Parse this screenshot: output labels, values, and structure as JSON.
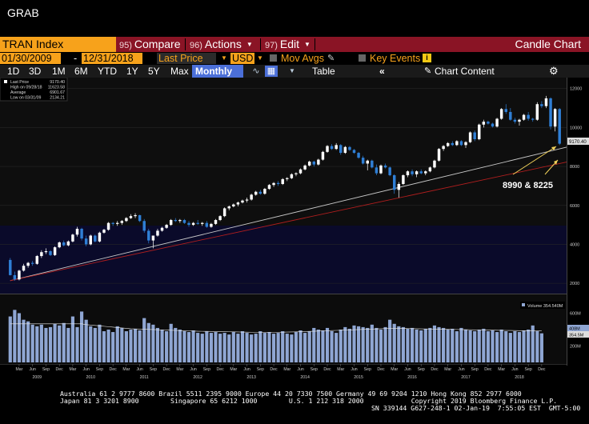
{
  "window": {
    "title": "GRAB"
  },
  "command_bar": {
    "security": "TRAN Index",
    "compare": {
      "num": "95)",
      "label": "Compare"
    },
    "actions": {
      "num": "96)",
      "label": "Actions"
    },
    "edit": {
      "num": "97)",
      "label": "Edit"
    },
    "chart_type": "Candle Chart"
  },
  "params": {
    "start_date": "01/30/2009",
    "dash": "-",
    "end_date": "12/31/2018",
    "field": "Last Price",
    "currency": "USD",
    "mov_avgs": "Mov Avgs",
    "key_events": "Key Events",
    "info": "i"
  },
  "periods": {
    "p1d": "1D",
    "p3d": "3D",
    "p1m": "1M",
    "p6m": "6M",
    "pytd": "YTD",
    "p1y": "1Y",
    "p5y": "5Y",
    "pmax": "Max",
    "frequency": "Monthly",
    "table": "Table",
    "chart_content": "Chart Content"
  },
  "legend": {
    "last_price_label": "Last Price",
    "last_price_value": "9170.40",
    "high_label": "High on 09/28/18",
    "high_value": "11623.58",
    "average_label": "Average",
    "average_value": "6901.67",
    "low_label": "Low on 03/31/09",
    "low_value": "2134.21"
  },
  "annotation": {
    "text": "8990 & 8225"
  },
  "last_price_tag": "9170.40",
  "volume_legend": "Volume 354.540M",
  "volume_tags": {
    "v1": "408M",
    "v2": "354.5M"
  },
  "footer": {
    "line1": "Australia 61 2 9777 8600 Brazil 5511 2395 9000 Europe 44 20 7330 7500 Germany 49 69 9204 1210 Hong Kong 852 2977 6000",
    "line2": "Japan 81 3 3201 8900        Singapore 65 6212 1000        U.S. 1 212 318 2000            Copyright 2019 Bloomberg Finance L.P.",
    "line3": "SN 339144 G627-248-1 02-Jan-19  7:55:05 EST  GMT-5:00"
  },
  "colors": {
    "up": "#ffffff",
    "down": "#2f7fd6",
    "trend_white": "#c8c8c8",
    "trend_red": "#b01e1e",
    "volume": "#8fa6d3",
    "menu": "#8a1425",
    "accent": "#f7a21b"
  },
  "chart_data": {
    "type": "candlestick",
    "frequency": "monthly",
    "ylim": [
      1800,
      12400
    ],
    "yticks": [
      2000,
      4000,
      6000,
      8000,
      10000,
      12000
    ],
    "start": "2009-01",
    "candles": [
      [
        3200,
        3300,
        2400,
        2420
      ],
      [
        2420,
        2600,
        2134,
        2200
      ],
      [
        2200,
        2700,
        2150,
        2650
      ],
      [
        2650,
        3000,
        2600,
        2900
      ],
      [
        2900,
        3100,
        2800,
        3050
      ],
      [
        3050,
        3150,
        2900,
        3000
      ],
      [
        3000,
        3450,
        2950,
        3400
      ],
      [
        3400,
        3700,
        3300,
        3600
      ],
      [
        3600,
        3800,
        3500,
        3650
      ],
      [
        3650,
        3700,
        3400,
        3450
      ],
      [
        3450,
        3900,
        3400,
        3850
      ],
      [
        3850,
        4150,
        3800,
        4100
      ],
      [
        4100,
        4200,
        3900,
        3950
      ],
      [
        3950,
        4200,
        3900,
        4150
      ],
      [
        4150,
        4550,
        4100,
        4500
      ],
      [
        4500,
        4900,
        4400,
        4800
      ],
      [
        4800,
        4850,
        4200,
        4300
      ],
      [
        4300,
        4450,
        3900,
        4000
      ],
      [
        4000,
        4500,
        3950,
        4450
      ],
      [
        4450,
        4500,
        4100,
        4150
      ],
      [
        4150,
        4650,
        4100,
        4600
      ],
      [
        4600,
        4800,
        4550,
        4750
      ],
      [
        4750,
        5150,
        4700,
        5100
      ],
      [
        5100,
        5150,
        4950,
        5050
      ],
      [
        5050,
        5200,
        4950,
        5100
      ],
      [
        5100,
        5250,
        5000,
        5200
      ],
      [
        5200,
        5400,
        5150,
        5350
      ],
      [
        5350,
        5550,
        5300,
        5450
      ],
      [
        5450,
        5600,
        5350,
        5500
      ],
      [
        5500,
        5520,
        5150,
        5200
      ],
      [
        5200,
        5300,
        4600,
        4700
      ],
      [
        4700,
        4800,
        4050,
        4200
      ],
      [
        4200,
        4400,
        3800,
        4450
      ],
      [
        4450,
        4800,
        4400,
        4700
      ],
      [
        4700,
        4900,
        4650,
        4850
      ],
      [
        4850,
        5050,
        4800,
        5000
      ],
      [
        5000,
        5300,
        4950,
        5250
      ],
      [
        5250,
        5350,
        5150,
        5200
      ],
      [
        5200,
        5300,
        5100,
        5250
      ],
      [
        5250,
        5300,
        5050,
        5100
      ],
      [
        5100,
        5200,
        4900,
        5000
      ],
      [
        5000,
        5150,
        4950,
        5100
      ],
      [
        5100,
        5250,
        5000,
        5050
      ],
      [
        5050,
        5150,
        4950,
        5100
      ],
      [
        5100,
        5200,
        4850,
        4900
      ],
      [
        4900,
        5100,
        4850,
        5050
      ],
      [
        5050,
        5300,
        5000,
        5250
      ],
      [
        5250,
        5500,
        5200,
        5450
      ],
      [
        5450,
        5900,
        5400,
        5850
      ],
      [
        5850,
        6000,
        5750,
        5950
      ],
      [
        5950,
        6100,
        5900,
        6050
      ],
      [
        6050,
        6200,
        5950,
        6150
      ],
      [
        6150,
        6300,
        6100,
        6250
      ],
      [
        6250,
        6400,
        6150,
        6300
      ],
      [
        6300,
        6600,
        6250,
        6550
      ],
      [
        6550,
        6750,
        6500,
        6700
      ],
      [
        6700,
        6800,
        6550,
        6600
      ],
      [
        6600,
        6900,
        6550,
        6850
      ],
      [
        6850,
        7100,
        6800,
        7050
      ],
      [
        7050,
        7200,
        6950,
        7150
      ],
      [
        7150,
        7250,
        7000,
        7100
      ],
      [
        7100,
        7400,
        7050,
        7350
      ],
      [
        7350,
        7450,
        7250,
        7400
      ],
      [
        7400,
        7650,
        7350,
        7600
      ],
      [
        7600,
        7700,
        7500,
        7650
      ],
      [
        7650,
        7900,
        7600,
        7850
      ],
      [
        7850,
        8100,
        7800,
        8050
      ],
      [
        8050,
        8300,
        8000,
        8250
      ],
      [
        8250,
        8300,
        8000,
        8100
      ],
      [
        8100,
        8400,
        8050,
        8350
      ],
      [
        8350,
        8800,
        8300,
        8750
      ],
      [
        8750,
        9100,
        8700,
        9050
      ],
      [
        9050,
        9150,
        8850,
        8900
      ],
      [
        8900,
        9200,
        8850,
        9100
      ],
      [
        9100,
        9150,
        8600,
        8700
      ],
      [
        8700,
        9050,
        8650,
        9000
      ],
      [
        9000,
        9050,
        8800,
        8850
      ],
      [
        8850,
        8900,
        8650,
        8700
      ],
      [
        8700,
        8750,
        8400,
        8450
      ],
      [
        8450,
        8550,
        8100,
        8150
      ],
      [
        8150,
        8350,
        7800,
        8300
      ],
      [
        8300,
        8350,
        7900,
        7950
      ],
      [
        7950,
        8100,
        7550,
        7650
      ],
      [
        7650,
        8100,
        7600,
        8050
      ],
      [
        8050,
        8150,
        7900,
        7950
      ],
      [
        7950,
        8000,
        7500,
        7550
      ],
      [
        7550,
        7600,
        6600,
        6800
      ],
      [
        6800,
        7200,
        6400,
        7100
      ],
      [
        7100,
        7600,
        7050,
        7550
      ],
      [
        7550,
        7800,
        7450,
        7750
      ],
      [
        7750,
        7850,
        7500,
        7600
      ],
      [
        7600,
        7800,
        7450,
        7750
      ],
      [
        7750,
        7850,
        7600,
        7650
      ],
      [
        7650,
        7800,
        7550,
        7750
      ],
      [
        7750,
        8000,
        7700,
        7950
      ],
      [
        7950,
        8350,
        7900,
        8300
      ],
      [
        8300,
        8950,
        8250,
        8900
      ],
      [
        8900,
        9100,
        8800,
        9050
      ],
      [
        9050,
        9250,
        9000,
        9200
      ],
      [
        9200,
        9300,
        9050,
        9100
      ],
      [
        9100,
        9350,
        9050,
        9300
      ],
      [
        9300,
        9350,
        9050,
        9100
      ],
      [
        9100,
        9300,
        8950,
        9250
      ],
      [
        9250,
        9800,
        9200,
        9750
      ],
      [
        9750,
        9850,
        9300,
        9400
      ],
      [
        9400,
        10200,
        9350,
        10150
      ],
      [
        10150,
        10400,
        10000,
        10300
      ],
      [
        10300,
        10350,
        10150,
        10200
      ],
      [
        10200,
        10250,
        10000,
        10050
      ],
      [
        10050,
        10500,
        10000,
        10450
      ],
      [
        10450,
        11000,
        10400,
        10950
      ],
      [
        10950,
        11200,
        10700,
        10800
      ],
      [
        10800,
        11000,
        10350,
        10400
      ],
      [
        10400,
        10500,
        10200,
        10300
      ],
      [
        10300,
        10450,
        10100,
        10400
      ],
      [
        10400,
        10700,
        10350,
        10650
      ],
      [
        10650,
        10800,
        10350,
        10450
      ],
      [
        10450,
        10500,
        10300,
        10400
      ],
      [
        10400,
        11300,
        10350,
        11200
      ],
      [
        11200,
        11350,
        11000,
        11100
      ],
      [
        11100,
        11623,
        11000,
        11500
      ],
      [
        11500,
        11550,
        9900,
        10050
      ],
      [
        10050,
        11000,
        9800,
        10950
      ],
      [
        10950,
        11000,
        9100,
        9170
      ]
    ],
    "trendlines": [
      {
        "color": "white",
        "from": [
          0,
          2134
        ],
        "to": [
          119,
          8990
        ]
      },
      {
        "color": "red",
        "from": [
          0,
          2134
        ],
        "to": [
          119,
          8225
        ]
      }
    ],
    "volume": {
      "unit": "M",
      "ylim": [
        0,
        780
      ],
      "yticks": [
        "200M",
        "400M",
        "600M"
      ],
      "values": [
        560,
        640,
        600,
        520,
        500,
        460,
        440,
        460,
        420,
        430,
        470,
        450,
        480,
        420,
        560,
        430,
        620,
        520,
        440,
        420,
        460,
        380,
        400,
        370,
        440,
        420,
        380,
        400,
        410,
        390,
        540,
        480,
        460,
        420,
        400,
        380,
        470,
        420,
        400,
        380,
        370,
        390,
        360,
        350,
        380,
        360,
        370,
        350,
        360,
        340,
        370,
        350,
        380,
        360,
        340,
        350,
        380,
        360,
        370,
        350,
        360,
        380,
        350,
        340,
        370,
        390,
        360,
        380,
        420,
        400,
        390,
        420,
        380,
        360,
        400,
        430,
        410,
        450,
        440,
        430,
        420,
        460,
        420,
        400,
        430,
        520,
        470,
        440,
        430,
        410,
        420,
        400,
        390,
        410,
        420,
        450,
        430,
        420,
        400,
        410,
        380,
        420,
        400,
        390,
        380,
        400,
        410,
        380,
        390,
        370,
        400,
        380,
        360,
        380,
        370,
        390,
        400,
        450,
        380,
        354.5
      ],
      "average": [
        470,
        470,
        470,
        470,
        470,
        470,
        470,
        470,
        470,
        470,
        470,
        470,
        470,
        470,
        470,
        470,
        470,
        460,
        455,
        450,
        445,
        440,
        435,
        430,
        425,
        420,
        415,
        410,
        408,
        406,
        404,
        402,
        400,
        398,
        396,
        394,
        392,
        390,
        388,
        386,
        384,
        382,
        380,
        379,
        378,
        377,
        376,
        375,
        374,
        373,
        372,
        371,
        370,
        369,
        368,
        368,
        368,
        368,
        368,
        368,
        368,
        369,
        370,
        371,
        372,
        374,
        376,
        378,
        380,
        382,
        384,
        386,
        388,
        390,
        392,
        394,
        396,
        398,
        400,
        402,
        404,
        406,
        408,
        410,
        412,
        414,
        414,
        414,
        413,
        412,
        411,
        410,
        409,
        408,
        407,
        406,
        405,
        404,
        403,
        402,
        401,
        400,
        399,
        398,
        397,
        396,
        395,
        394,
        393,
        392,
        391,
        390,
        389,
        388,
        387,
        386,
        386,
        386,
        386,
        386
      ]
    },
    "x_month_labels": [
      "Mar",
      "Jun",
      "Sep",
      "Dec"
    ],
    "x_year_labels": [
      "2009",
      "2010",
      "2011",
      "2012",
      "2013",
      "2014",
      "2015",
      "2016",
      "2017",
      "2018"
    ]
  }
}
